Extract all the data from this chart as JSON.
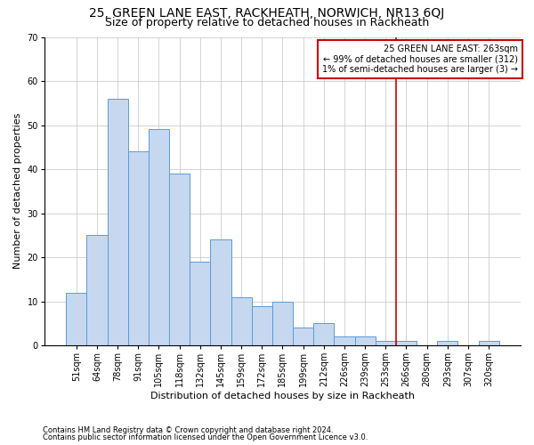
{
  "title": "25, GREEN LANE EAST, RACKHEATH, NORWICH, NR13 6QJ",
  "subtitle": "Size of property relative to detached houses in Rackheath",
  "xlabel": "Distribution of detached houses by size in Rackheath",
  "ylabel": "Number of detached properties",
  "categories": [
    "51sqm",
    "64sqm",
    "78sqm",
    "91sqm",
    "105sqm",
    "118sqm",
    "132sqm",
    "145sqm",
    "159sqm",
    "172sqm",
    "185sqm",
    "199sqm",
    "212sqm",
    "226sqm",
    "239sqm",
    "253sqm",
    "266sqm",
    "280sqm",
    "293sqm",
    "307sqm",
    "320sqm"
  ],
  "values": [
    12,
    25,
    56,
    44,
    49,
    39,
    19,
    24,
    11,
    9,
    10,
    4,
    5,
    2,
    2,
    1,
    1,
    0,
    1,
    0,
    1
  ],
  "bar_color": "#c5d8f0",
  "bar_edge_color": "#5b9bd5",
  "vline_color": "#cc0000",
  "annotation_title": "25 GREEN LANE EAST: 263sqm",
  "annotation_line1": "← 99% of detached houses are smaller (312)",
  "annotation_line2": "1% of semi-detached houses are larger (3) →",
  "annotation_box_color": "#cc0000",
  "ylim": [
    0,
    70
  ],
  "yticks": [
    0,
    10,
    20,
    30,
    40,
    50,
    60,
    70
  ],
  "footer1": "Contains HM Land Registry data © Crown copyright and database right 2024.",
  "footer2": "Contains public sector information licensed under the Open Government Licence v3.0.",
  "bg_color": "#ffffff",
  "grid_color": "#cccccc",
  "title_fontsize": 10,
  "subtitle_fontsize": 9,
  "axis_label_fontsize": 8,
  "tick_fontsize": 7,
  "annot_fontsize": 7,
  "footer_fontsize": 6
}
